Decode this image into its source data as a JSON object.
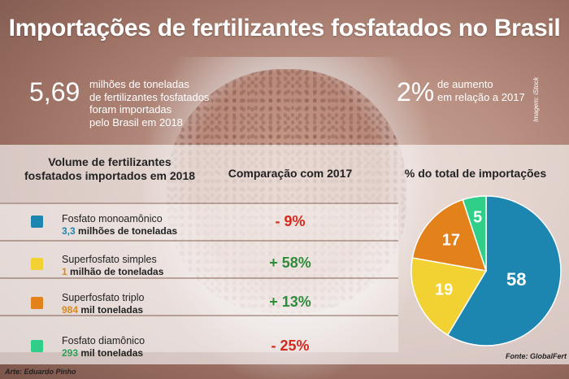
{
  "title": "Importações de fertilizantes fosfatados no Brasil",
  "stats": {
    "total_value": "5,69",
    "total_text": [
      "milhões de toneladas",
      "de fertilizantes fosfatados",
      "foram importadas",
      "pelo Brasil em 2018"
    ],
    "increase_value": "2%",
    "increase_text": [
      "de aumento",
      "em relação a 2017"
    ]
  },
  "image_credit": "Imagem: iStock",
  "headers": {
    "volume": [
      "Volume de fertilizantes",
      "fosfatados importados em 2018"
    ],
    "comparison": "Comparação com 2017",
    "share": "% do total de importações"
  },
  "products": [
    {
      "name": "Fosfato monoamônico",
      "amount_num": "3,3",
      "amount_unit": " milhões de toneladas",
      "change": "- 9%",
      "color": "#1c86b0",
      "change_color": "#d42a1e",
      "share": 58
    },
    {
      "name": "Superfosfato simples",
      "amount_num": "1",
      "amount_unit": " milhão de toneladas",
      "change": "+ 58%",
      "color": "#f2d232",
      "change_color": "#2e8b3a",
      "share": 19
    },
    {
      "name": "Superfosfato triplo",
      "amount_num": "984",
      "amount_unit": " mil toneladas",
      "change": "+ 13%",
      "color": "#e3821a",
      "change_color": "#2e8b3a",
      "share": 17
    },
    {
      "name": "Fosfato diamônico",
      "amount_num": "293",
      "amount_unit": " mil toneladas",
      "change": "- 25%",
      "color": "#2fcf8a",
      "change_color": "#d42a1e",
      "share": 5
    }
  ],
  "chart_data": {
    "type": "pie",
    "title": "% do total de importações",
    "categories": [
      "Fosfato monoamônico",
      "Superfosfato simples",
      "Superfosfato triplo",
      "Fosfato diamônico"
    ],
    "values": [
      58,
      19,
      17,
      5
    ],
    "colors": [
      "#1c86b0",
      "#f2d232",
      "#e3821a",
      "#2fcf8a"
    ]
  },
  "source": "Fonte: GlobalFert",
  "art_credit": "Arte: Eduardo Pinho"
}
